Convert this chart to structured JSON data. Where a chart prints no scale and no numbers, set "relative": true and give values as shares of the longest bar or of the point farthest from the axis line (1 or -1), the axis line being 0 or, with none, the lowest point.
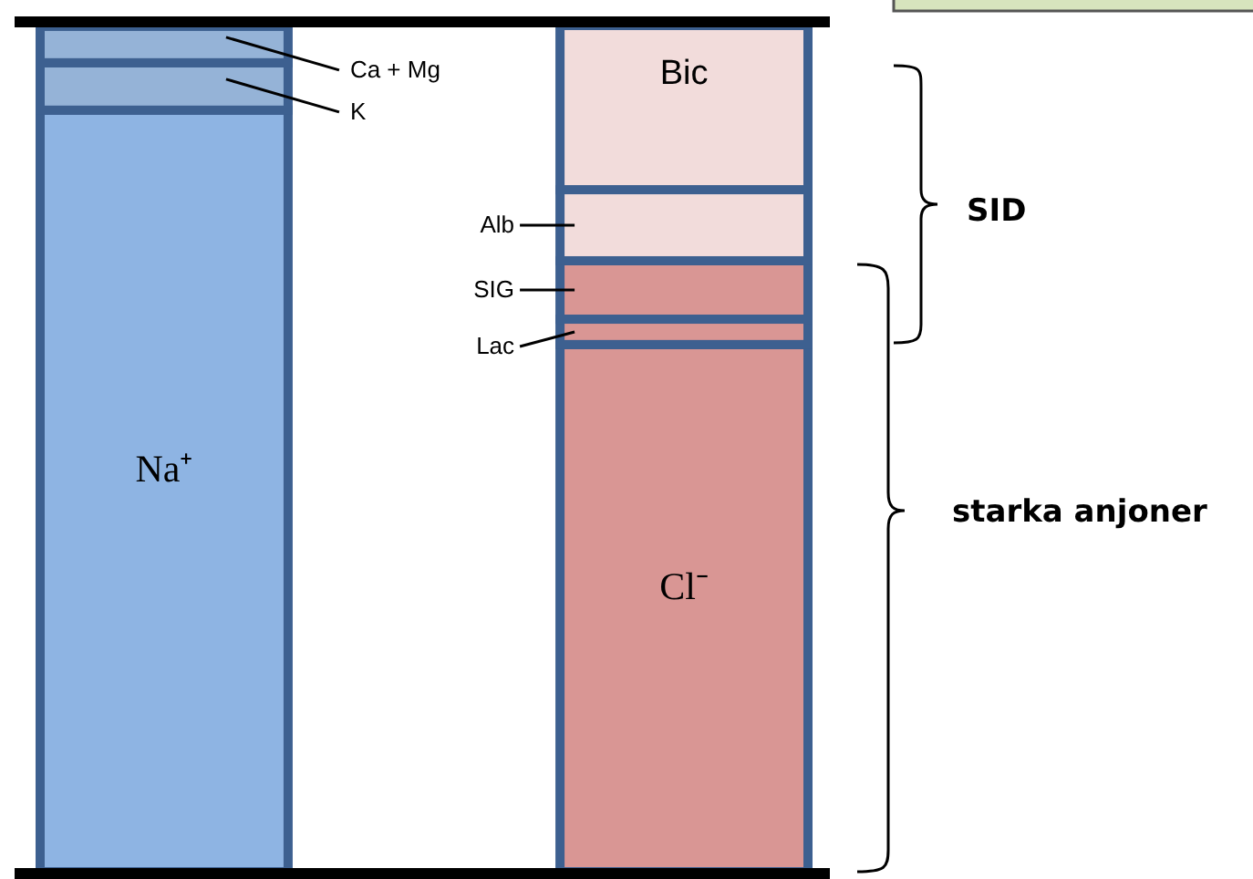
{
  "chart_data": {
    "type": "bar",
    "stacked": true,
    "relative": true,
    "categories": [
      null,
      null
    ],
    "series": [
      {
        "name": "Na⁺",
        "color": "#8eb4e3",
        "values": [
          0.9,
          null
        ]
      },
      {
        "name": "K",
        "color": "#95b3d7",
        "values": [
          0.056,
          null
        ]
      },
      {
        "name": "Ca + Mg",
        "color": "#95b3d7",
        "values": [
          0.043,
          null
        ]
      },
      {
        "name": "Cl⁻",
        "color": "#d99694",
        "values": [
          null,
          0.623
        ]
      },
      {
        "name": "Lac",
        "color": "#d99694",
        "values": [
          null,
          0.03
        ]
      },
      {
        "name": "SIG",
        "color": "#d99694",
        "values": [
          null,
          0.069
        ]
      },
      {
        "name": "Alb",
        "color": "#f2dcdb",
        "values": [
          null,
          0.084
        ]
      },
      {
        "name": "Bic",
        "color": "#f2dcdb",
        "values": [
          null,
          0.194
        ]
      }
    ],
    "annotations": [
      "SID",
      "starka anjoner"
    ]
  }
}
